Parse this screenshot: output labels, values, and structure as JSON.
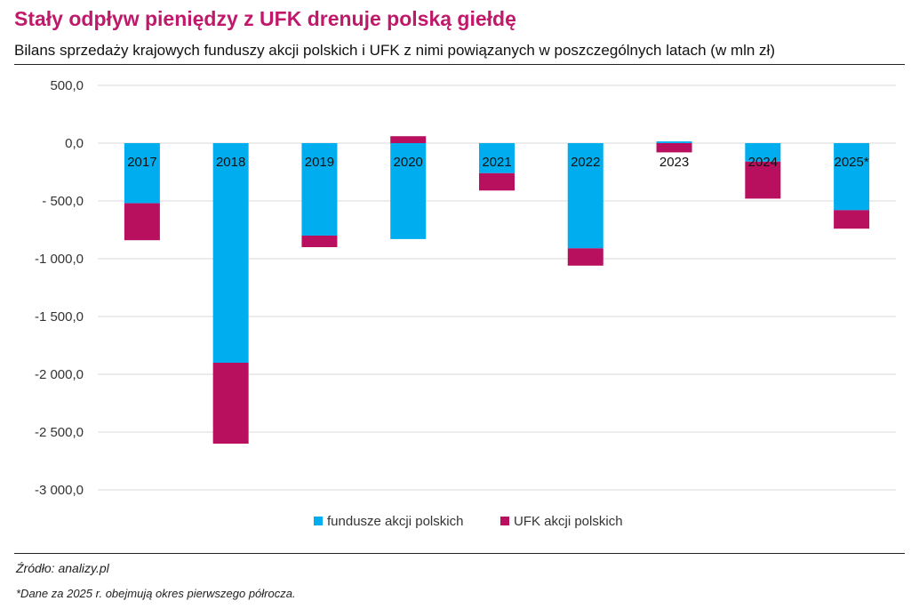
{
  "header": {
    "title": "Stały odpływ pieniędzy z UFK drenuje polską giełdę",
    "subtitle": "Bilans sprzedaży krajowych funduszy akcji polskich i UFK z nimi powiązanych w poszczególnych latach (w mln zł)"
  },
  "footer": {
    "source": "Źródło: analizy.pl",
    "note": "*Dane za 2025 r. obejmują okres pierwszego półrocza."
  },
  "chart_data": {
    "type": "bar",
    "stacked": true,
    "categories": [
      "2017",
      "2018",
      "2019",
      "2020",
      "2021",
      "2022",
      "2023",
      "2024",
      "2025*"
    ],
    "series": [
      {
        "name": "fundusze akcji polskich",
        "color": "#00aeef",
        "values": [
          -520,
          -1900,
          -800,
          -830,
          -260,
          -910,
          15,
          -160,
          -580
        ]
      },
      {
        "name": "UFK akcji polskich",
        "color": "#b8105f",
        "values": [
          -320,
          -700,
          -100,
          60,
          -150,
          -150,
          -80,
          -320,
          -160
        ]
      }
    ],
    "ylim": [
      -3000,
      500
    ],
    "yticks": [
      500,
      0,
      -500,
      -1000,
      -1500,
      -2000,
      -2500,
      -3000
    ],
    "ytick_labels": [
      "500,0",
      "0,0",
      "- 500,0",
      "-1 000,0",
      "-1 500,0",
      "-2 000,0",
      "-2 500,0",
      "-3 000,0"
    ],
    "grid": true,
    "legend_position": "bottom",
    "xlabel": "",
    "ylabel": ""
  }
}
